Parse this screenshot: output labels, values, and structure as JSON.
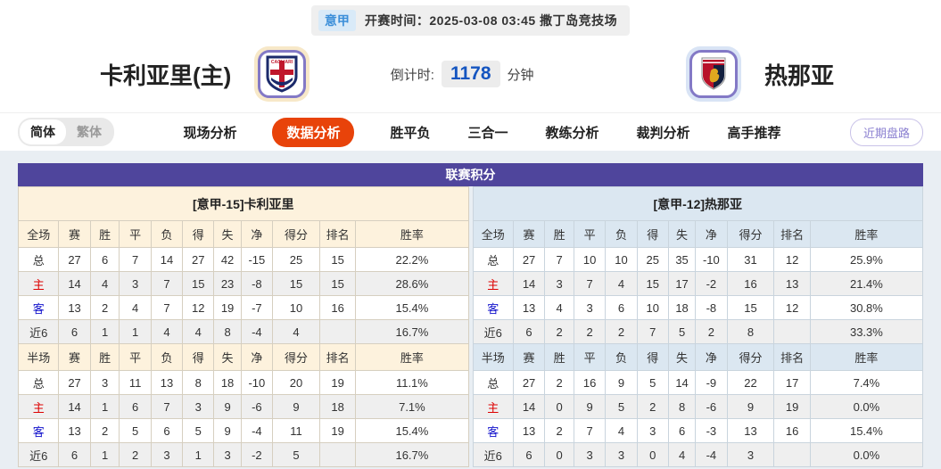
{
  "top_bar": {
    "league": "意甲",
    "kickoff": "开赛时间：2025-03-08 03:45  撒丁岛竞技场"
  },
  "header": {
    "home_team": "卡利亚里(主)",
    "away_team": "热那亚",
    "countdown_label": "倒计时:",
    "countdown_value": "1178",
    "countdown_unit": "分钟",
    "home_crest": "cagliari-crest",
    "away_crest": "genoa-crest"
  },
  "nav": {
    "lang_simplified": "简体",
    "lang_traditional": "繁体",
    "tabs": [
      {
        "label": "现场分析",
        "active": false
      },
      {
        "label": "数据分析",
        "active": true
      },
      {
        "label": "胜平负",
        "active": false
      },
      {
        "label": "三合一",
        "active": false
      },
      {
        "label": "教练分析",
        "active": false
      },
      {
        "label": "裁判分析",
        "active": false
      },
      {
        "label": "高手推荐",
        "active": false
      }
    ],
    "recent_link": "近期盘路"
  },
  "standings": {
    "title": "联赛积分",
    "columns_full": [
      "全场",
      "赛",
      "胜",
      "平",
      "负",
      "得",
      "失",
      "净",
      "得分",
      "排名",
      "胜率"
    ],
    "columns_half": [
      "半场",
      "赛",
      "胜",
      "平",
      "负",
      "得",
      "失",
      "净",
      "得分",
      "排名",
      "胜率"
    ],
    "home": {
      "team_header": "[意甲-15]卡利亚里",
      "full_rows": [
        {
          "label": "总",
          "lc": "dark",
          "values": [
            "27",
            "6",
            "7",
            "14",
            "27",
            "42",
            "-15",
            "25",
            "15",
            "22.2%"
          ]
        },
        {
          "label": "主",
          "lc": "red",
          "values": [
            "14",
            "4",
            "3",
            "7",
            "15",
            "23",
            "-8",
            "15",
            "15",
            "28.6%"
          ]
        },
        {
          "label": "客",
          "lc": "blue",
          "values": [
            "13",
            "2",
            "4",
            "7",
            "12",
            "19",
            "-7",
            "10",
            "16",
            "15.4%"
          ]
        },
        {
          "label": "近6",
          "lc": "dark",
          "values": [
            "6",
            "1",
            "1",
            "4",
            "4",
            "8",
            "-4",
            "4",
            "",
            "16.7%"
          ]
        }
      ],
      "half_rows": [
        {
          "label": "总",
          "lc": "dark",
          "values": [
            "27",
            "3",
            "11",
            "13",
            "8",
            "18",
            "-10",
            "20",
            "19",
            "11.1%"
          ]
        },
        {
          "label": "主",
          "lc": "red",
          "values": [
            "14",
            "1",
            "6",
            "7",
            "3",
            "9",
            "-6",
            "9",
            "18",
            "7.1%"
          ]
        },
        {
          "label": "客",
          "lc": "blue",
          "values": [
            "13",
            "2",
            "5",
            "6",
            "5",
            "9",
            "-4",
            "11",
            "19",
            "15.4%"
          ]
        },
        {
          "label": "近6",
          "lc": "dark",
          "values": [
            "6",
            "1",
            "2",
            "3",
            "1",
            "3",
            "-2",
            "5",
            "",
            "16.7%"
          ]
        }
      ]
    },
    "away": {
      "team_header": "[意甲-12]热那亚",
      "full_rows": [
        {
          "label": "总",
          "lc": "dark",
          "values": [
            "27",
            "7",
            "10",
            "10",
            "25",
            "35",
            "-10",
            "31",
            "12",
            "25.9%"
          ]
        },
        {
          "label": "主",
          "lc": "red",
          "values": [
            "14",
            "3",
            "7",
            "4",
            "15",
            "17",
            "-2",
            "16",
            "13",
            "21.4%"
          ]
        },
        {
          "label": "客",
          "lc": "blue",
          "values": [
            "13",
            "4",
            "3",
            "6",
            "10",
            "18",
            "-8",
            "15",
            "12",
            "30.8%"
          ]
        },
        {
          "label": "近6",
          "lc": "dark",
          "values": [
            "6",
            "2",
            "2",
            "2",
            "7",
            "5",
            "2",
            "8",
            "",
            "33.3%"
          ]
        }
      ],
      "half_rows": [
        {
          "label": "总",
          "lc": "dark",
          "values": [
            "27",
            "2",
            "16",
            "9",
            "5",
            "14",
            "-9",
            "22",
            "17",
            "7.4%"
          ]
        },
        {
          "label": "主",
          "lc": "red",
          "values": [
            "14",
            "0",
            "9",
            "5",
            "2",
            "8",
            "-6",
            "9",
            "19",
            "0.0%"
          ]
        },
        {
          "label": "客",
          "lc": "blue",
          "values": [
            "13",
            "2",
            "7",
            "4",
            "3",
            "6",
            "-3",
            "13",
            "16",
            "15.4%"
          ]
        },
        {
          "label": "近6",
          "lc": "dark",
          "values": [
            "6",
            "0",
            "3",
            "3",
            "0",
            "4",
            "-4",
            "3",
            "",
            "0.0%"
          ]
        }
      ]
    }
  },
  "colors": {
    "accent_purple": "#4f459c",
    "active_tab": "#e8430a",
    "home_panel": "#fdf2dd",
    "away_panel": "#dbe7f1",
    "countdown_blue": "#1455c0",
    "label_red": "#dd0000",
    "label_blue": "#1212cc"
  }
}
